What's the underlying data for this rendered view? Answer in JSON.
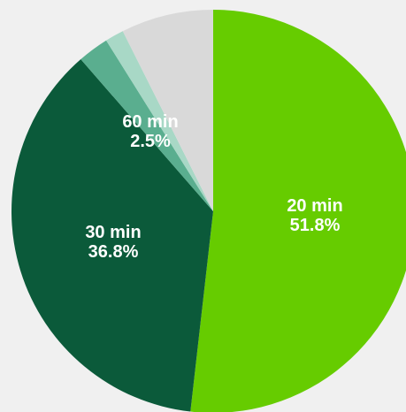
{
  "chart_data": {
    "type": "pie",
    "title": "",
    "start_angle_deg": 0,
    "direction": "clockwise",
    "slices": [
      {
        "label": "20 min",
        "value": 51.8,
        "value_text": "51.8%",
        "color": "#66cc00",
        "show_label": true
      },
      {
        "label": "30 min",
        "value": 36.8,
        "value_text": "36.8%",
        "color": "#0b5a3a",
        "show_label": true
      },
      {
        "label": "60 min",
        "value": 2.5,
        "value_text": "2.5%",
        "color": "#5aae8f",
        "show_label": true
      },
      {
        "label": "",
        "value": 1.5,
        "value_text": "",
        "color": "#a8d8c6",
        "show_label": false
      },
      {
        "label": "",
        "value": 7.4,
        "value_text": "",
        "color": "#d9d9d9",
        "show_label": false
      }
    ]
  }
}
